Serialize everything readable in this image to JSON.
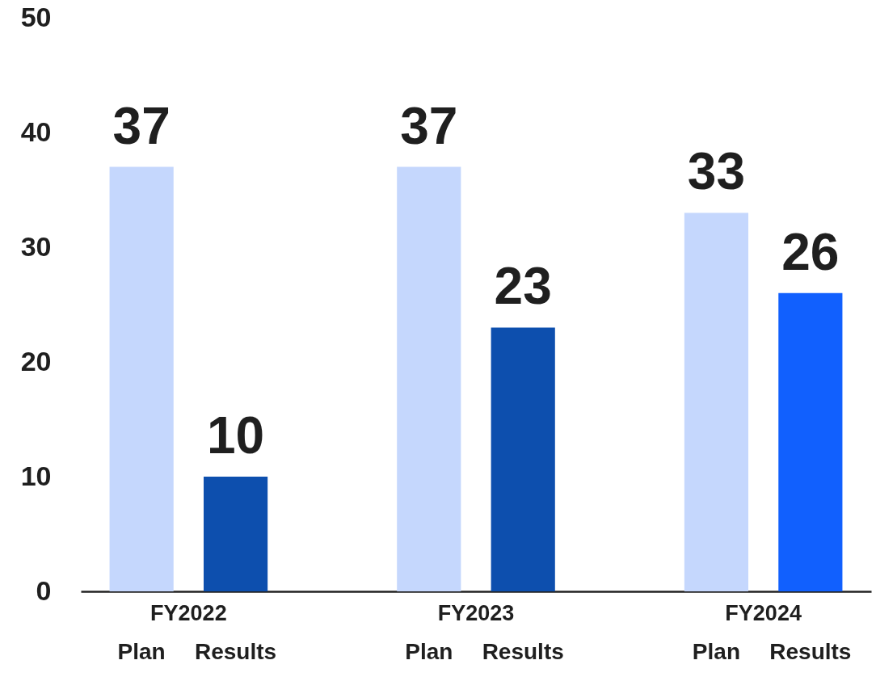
{
  "chart_data": {
    "type": "bar",
    "categories": [
      "FY2022",
      "FY2023",
      "FY2024"
    ],
    "series": [
      {
        "name": "Plan",
        "color": "#c5d7fd",
        "values": [
          37,
          37,
          33
        ]
      },
      {
        "name": "Results",
        "colors": [
          "#0d4fae",
          "#0d4fae",
          "#1160fe"
        ],
        "values": [
          10,
          23,
          26
        ]
      }
    ],
    "ylim": [
      0,
      50
    ],
    "yticks": [
      0,
      10,
      20,
      30,
      40,
      50
    ],
    "data_labels": true
  }
}
